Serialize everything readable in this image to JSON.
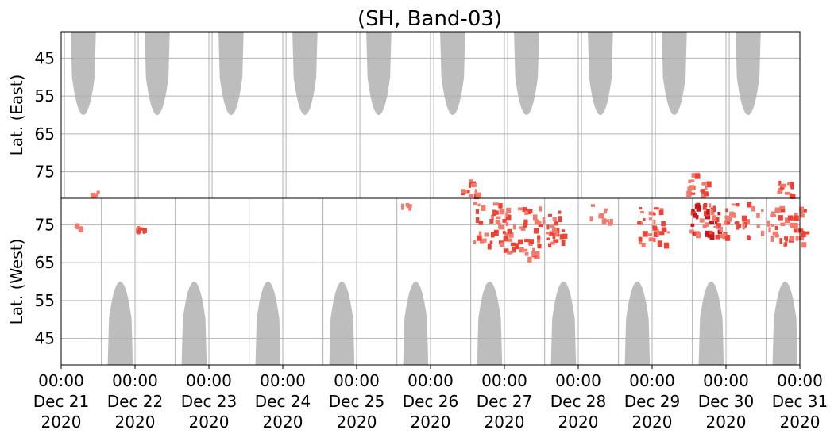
{
  "chart_data": {
    "type": "heatmap",
    "title": "(SH, Band-03)",
    "panels": [
      {
        "name": "east",
        "ylabel": "Lat. (East)",
        "y_ticks": [
          45,
          55,
          65,
          75
        ],
        "y_range": [
          38,
          82
        ],
        "y_direction": "increasing-down"
      },
      {
        "name": "west",
        "ylabel": "Lat. (West)",
        "y_ticks": [
          75,
          65,
          55,
          45
        ],
        "y_range": [
          82,
          38
        ],
        "y_direction": "decreasing-down"
      }
    ],
    "x_range": [
      "2020-12-21 00:00",
      "2020-12-31 00:00"
    ],
    "x_ticks": [
      {
        "time": "00:00",
        "date": "Dec 21",
        "year": "2020"
      },
      {
        "time": "00:00",
        "date": "Dec 22",
        "year": "2020"
      },
      {
        "time": "00:00",
        "date": "Dec 23",
        "year": "2020"
      },
      {
        "time": "00:00",
        "date": "Dec 24",
        "year": "2020"
      },
      {
        "time": "00:00",
        "date": "Dec 25",
        "year": "2020"
      },
      {
        "time": "00:00",
        "date": "Dec 26",
        "year": "2020"
      },
      {
        "time": "00:00",
        "date": "Dec 27",
        "year": "2020"
      },
      {
        "time": "00:00",
        "date": "Dec 28",
        "year": "2020"
      },
      {
        "time": "00:00",
        "date": "Dec 29",
        "year": "2020"
      },
      {
        "time": "00:00",
        "date": "Dec 30",
        "year": "2020"
      },
      {
        "time": "00:00",
        "date": "Dec 31",
        "year": "2020"
      }
    ],
    "grid": true,
    "colors": {
      "no_data": "#bdbdbd",
      "echo_light": "#f47a6e",
      "echo_mid": "#ef4136",
      "echo_dark": "#c4161c",
      "grid": "#b0b0b0"
    },
    "no_data_east_day_offsets": [
      0.3,
      1.3,
      2.3,
      3.3,
      4.3,
      5.3,
      6.3,
      7.3,
      8.3,
      9.3
    ],
    "no_data_west_day_offsets": [
      0.8,
      1.8,
      2.8,
      3.8,
      4.8,
      5.8,
      6.8,
      7.8,
      8.8,
      9.8
    ],
    "no_data_min_latitude": 60,
    "echo_clusters": [
      {
        "day": 0.42,
        "panel": "east",
        "lat_start": 80,
        "lat_end": 81,
        "intensity": 1
      },
      {
        "day": 0.21,
        "panel": "west",
        "lat_start": 74,
        "lat_end": 76,
        "intensity": 1
      },
      {
        "day": 1.04,
        "panel": "west",
        "lat_start": 73,
        "lat_end": 75,
        "intensity": 2
      },
      {
        "day": 4.65,
        "panel": "west",
        "lat_start": 80,
        "lat_end": 81,
        "intensity": 1
      },
      {
        "day": 5.5,
        "panel": "east",
        "lat_start": 77,
        "lat_end": 81,
        "intensity": 2
      },
      {
        "day": 5.8,
        "panel": "west",
        "lat_start": 70,
        "lat_end": 81,
        "intensity": 2
      },
      {
        "day": 6.2,
        "panel": "west",
        "lat_start": 66,
        "lat_end": 80,
        "intensity": 2
      },
      {
        "day": 6.6,
        "panel": "west",
        "lat_start": 70,
        "lat_end": 79,
        "intensity": 2
      },
      {
        "day": 7.3,
        "panel": "west",
        "lat_start": 75,
        "lat_end": 81,
        "intensity": 1
      },
      {
        "day": 8.0,
        "panel": "west",
        "lat_start": 70,
        "lat_end": 80,
        "intensity": 2
      },
      {
        "day": 8.6,
        "panel": "east",
        "lat_start": 75,
        "lat_end": 81,
        "intensity": 2
      },
      {
        "day": 8.7,
        "panel": "west",
        "lat_start": 72,
        "lat_end": 81,
        "intensity": 3
      },
      {
        "day": 9.1,
        "panel": "west",
        "lat_start": 72,
        "lat_end": 81,
        "intensity": 2
      },
      {
        "day": 9.5,
        "panel": "west",
        "lat_start": 72,
        "lat_end": 80,
        "intensity": 1
      },
      {
        "day": 9.8,
        "panel": "east",
        "lat_start": 77,
        "lat_end": 81,
        "intensity": 2
      },
      {
        "day": 9.85,
        "panel": "west",
        "lat_start": 70,
        "lat_end": 81,
        "intensity": 2
      }
    ]
  }
}
